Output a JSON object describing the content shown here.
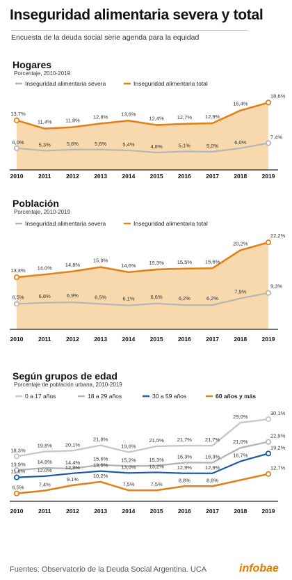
{
  "title": "Inseguridad alimentaria severa y total",
  "subtitle": "Encuesta de la deuda social serie agenda para la equidad",
  "footer": "Fuentes: Observatorio de la Deuda Social Argentina. UCA",
  "brand": "infobae",
  "colors": {
    "orange": "#e0821a",
    "fill": "#f8d9ad",
    "gray": "#b5b5b5",
    "lightgray": "#c8c8c8",
    "blue": "#1f5aa0",
    "axis": "#222222"
  },
  "chart_data": [
    {
      "type": "area",
      "title": "Hogares",
      "subtitle": "Porcentaje, 2010-2019",
      "x": [
        "2010",
        "2011",
        "2012",
        "2013",
        "2014",
        "2015",
        "2016",
        "2017",
        "2018",
        "2019"
      ],
      "series": [
        {
          "name": "Inseguridad alimentaria severa",
          "values": [
            6.0,
            5.3,
            5.6,
            5.6,
            5.4,
            4.8,
            5.1,
            5.0,
            6.0,
            7.4
          ],
          "labels": [
            "6,0%",
            "5,3%",
            "5,6%",
            "5,6%",
            "5,4%",
            "4,8%",
            "5,1%",
            "5,0%",
            "6,0%",
            "7,4%"
          ]
        },
        {
          "name": "Inseguridad alimentaria total",
          "values": [
            13.7,
            11.4,
            11.8,
            12.8,
            13.6,
            12.4,
            12.7,
            12.9,
            16.4,
            18.6
          ],
          "labels": [
            "13,7%",
            "11,4%",
            "11,8%",
            "12,8%",
            "13,6%",
            "12,4%",
            "12,7%",
            "12,9%",
            "16,4%",
            "18,6%"
          ]
        }
      ]
    },
    {
      "type": "area",
      "title": "Población",
      "subtitle": "Porcentaje, 2010-2019",
      "x": [
        "2010",
        "2011",
        "2012",
        "2013",
        "2014",
        "2015",
        "2016",
        "2017",
        "2018",
        "2019"
      ],
      "series": [
        {
          "name": "Inseguridad alimentaria severa",
          "values": [
            6.5,
            6.8,
            6.9,
            6.5,
            6.1,
            6.6,
            6.2,
            6.2,
            7.9,
            9.3
          ],
          "labels": [
            "6,5%",
            "6,8%",
            "6,9%",
            "6,5%",
            "6,1%",
            "6,6%",
            "6,2%",
            "6,2%",
            "7,9%",
            "9,3%"
          ]
        },
        {
          "name": "Inseguridad alimentaria total",
          "values": [
            13.3,
            14.0,
            14.8,
            15.9,
            14.6,
            15.3,
            15.5,
            15.6,
            20.2,
            22.2
          ],
          "labels": [
            "13,3%",
            "14,0%",
            "14,8%",
            "15,9%",
            "14,6%",
            "15,3%",
            "15,5%",
            "15,6%",
            "20,2%",
            "22,2%"
          ]
        }
      ]
    },
    {
      "type": "line",
      "title": "Según grupos de edad",
      "subtitle": "Porcentaje de población urbana, 2010-2019",
      "x": [
        "2010",
        "2011",
        "2012",
        "2013",
        "2014",
        "2015",
        "2016",
        "2017",
        "2018",
        "2019"
      ],
      "series": [
        {
          "name": "0 a 17 años",
          "values": [
            18.3,
            19.8,
            20.1,
            21.8,
            19.6,
            21.5,
            21.7,
            21.7,
            29.0,
            30.1
          ],
          "labels": [
            "18,3%",
            "19,8%",
            "20,1%",
            "21,8%",
            "19,6%",
            "21,5%",
            "21,7%",
            "21,7%",
            "29,0%",
            "30,1%"
          ]
        },
        {
          "name": "18 a 29 años",
          "values": [
            13.9,
            14.6,
            14.4,
            15.6,
            15.2,
            15.3,
            16.3,
            16.3,
            21.0,
            22.9
          ],
          "labels": [
            "13,9%",
            "14,6%",
            "14,4%",
            "15,6%",
            "15,2%",
            "15,3%",
            "16,3%",
            "16,3%",
            "21,0%",
            "22,9%"
          ]
        },
        {
          "name": "30 a 59 años",
          "values": [
            11.6,
            12.0,
            12.9,
            13.6,
            13.0,
            13.2,
            12.9,
            12.9,
            16.7,
            19.2
          ],
          "labels": [
            "11,6%",
            "12,0%",
            "12,9%",
            "13,6%",
            "13,0%",
            "13,2%",
            "12,9%",
            "12,9%",
            "16,7%",
            "19,2%"
          ]
        },
        {
          "name": "60 años y más",
          "values": [
            6.5,
            7.4,
            9.1,
            10.2,
            7.5,
            7.5,
            8.8,
            8.8,
            null,
            12.7
          ],
          "labels": [
            "6,5%",
            "7,4%",
            "9,1%",
            "10,2%",
            "7,5%",
            "7,5%",
            "8,8%",
            "8,8%",
            "",
            "12,7%"
          ]
        }
      ]
    }
  ]
}
